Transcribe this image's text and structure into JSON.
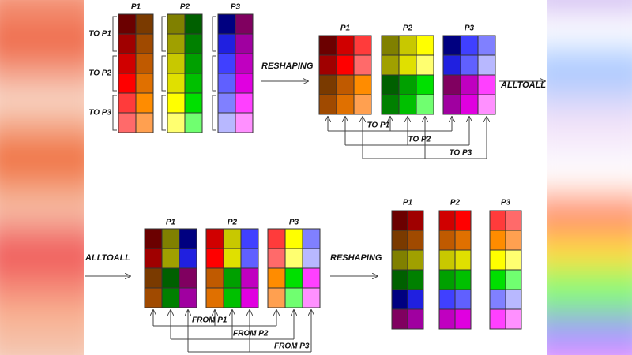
{
  "stage1": {
    "grids": [
      "P1",
      "P2",
      "P3"
    ],
    "targets": [
      "TO P1",
      "TO P2",
      "TO P3"
    ]
  },
  "step1": "RESHAPING",
  "stage2": {
    "grids": [
      "P1",
      "P2",
      "P3"
    ],
    "routes": [
      "TO P1",
      "TO P2",
      "TO P3"
    ]
  },
  "step2": "ALLTOALL",
  "step3": "ALLTOALL",
  "stage3": {
    "grids": [
      "P1",
      "P2",
      "P3"
    ],
    "routes": [
      "FROM P1",
      "FROM P2",
      "FROM P3"
    ]
  },
  "step4": "RESHAPING",
  "stage4": {
    "grids": [
      "P1",
      "P2",
      "P3"
    ]
  }
}
